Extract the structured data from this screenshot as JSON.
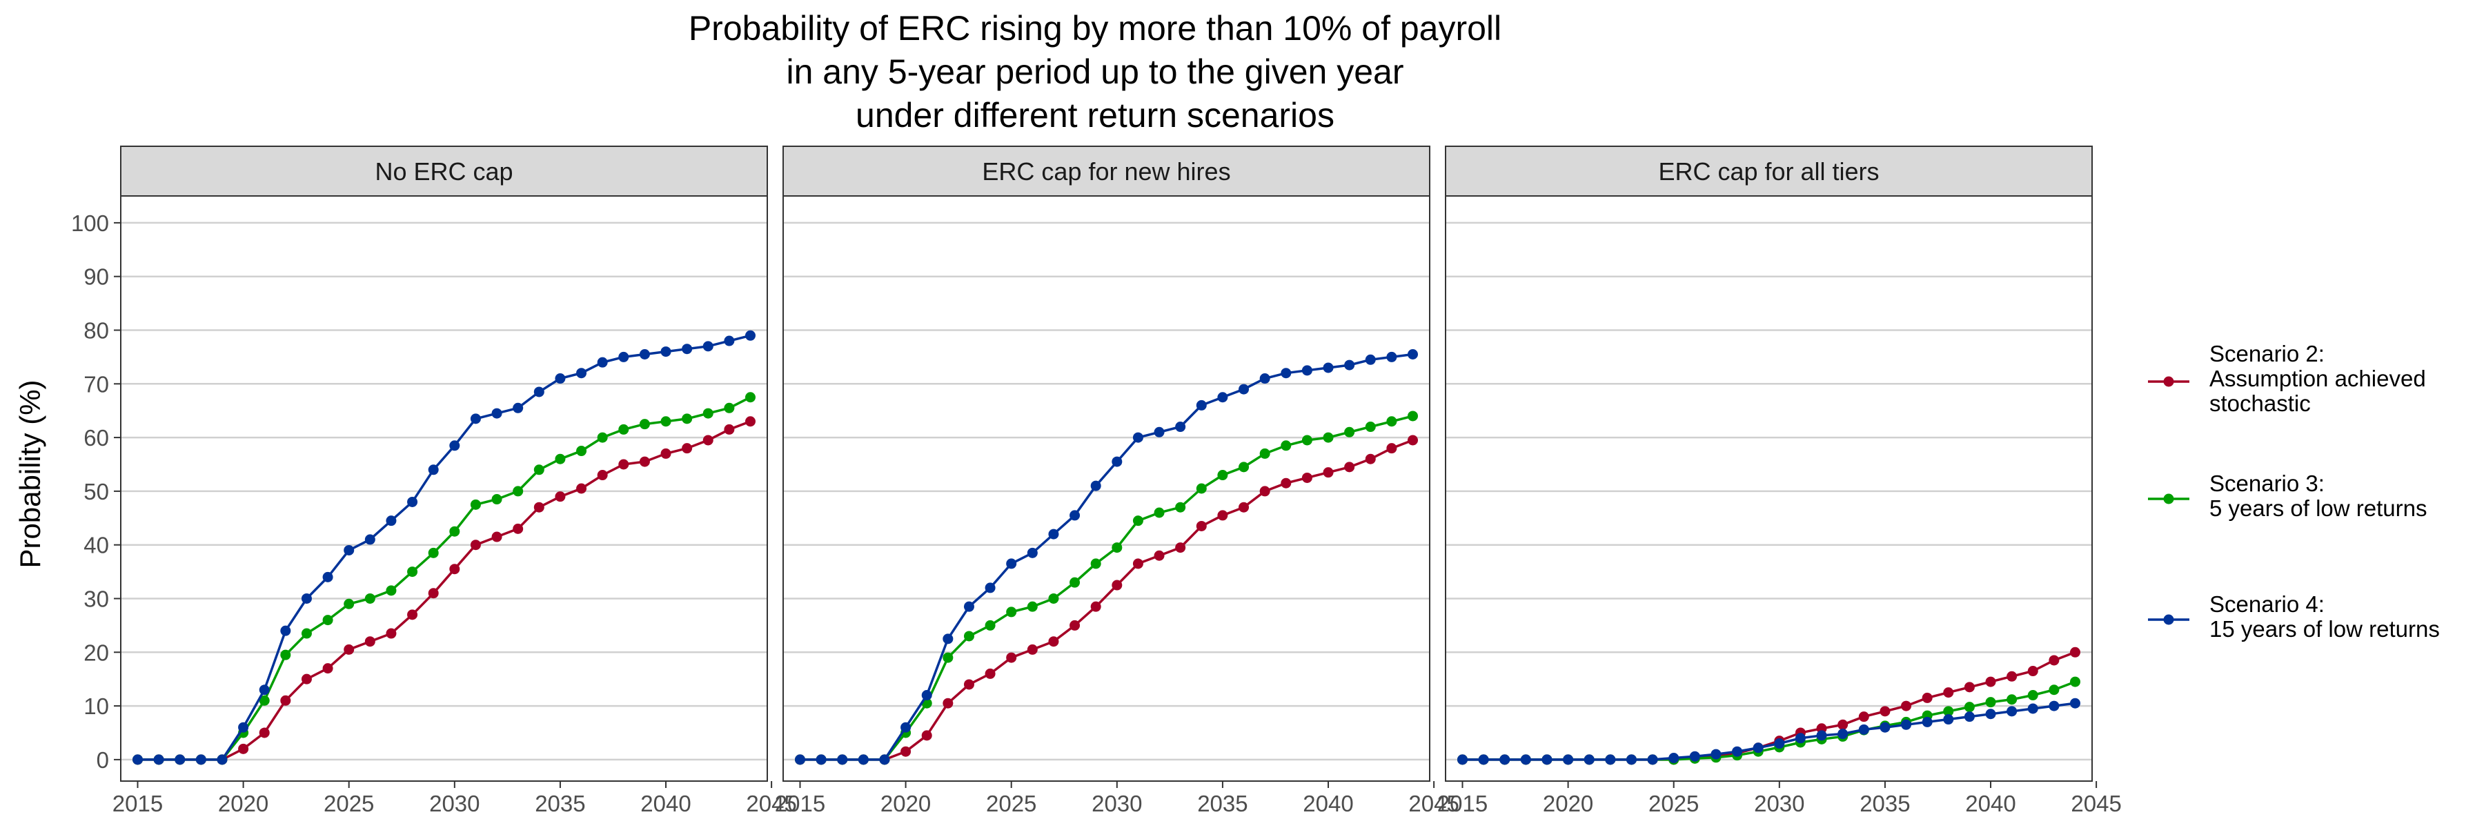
{
  "chart_data": {
    "type": "line",
    "title": [
      "Probability of ERC rising by more than 10% of payroll",
      "in any 5-year period up to the given year",
      "under different return scenarios"
    ],
    "ylabel": "Probability (%)",
    "xlabel": "",
    "xlim": [
      2014.2,
      2044.8
    ],
    "ylim": [
      -4,
      105
    ],
    "x_ticks": [
      "2015",
      "2020",
      "2025",
      "2030",
      "2035",
      "2040",
      "2045"
    ],
    "y_ticks": [
      "0",
      "10",
      "20",
      "30",
      "40",
      "50",
      "60",
      "70",
      "80",
      "90",
      "100"
    ],
    "grid": "horizontal major",
    "legend_position": "right",
    "x": [
      2015,
      2016,
      2017,
      2018,
      2019,
      2020,
      2021,
      2022,
      2023,
      2024,
      2025,
      2026,
      2027,
      2028,
      2029,
      2030,
      2031,
      2032,
      2033,
      2034,
      2035,
      2036,
      2037,
      2038,
      2039,
      2040,
      2041,
      2042,
      2043,
      2044
    ],
    "series_styles": [
      {
        "label_lines": [
          "Scenario 2:",
          "Assumption achieved",
          "stochastic"
        ],
        "color": "#A50026"
      },
      {
        "label_lines": [
          "Scenario 3:",
          "5 years of low returns"
        ],
        "color": "#009E00"
      },
      {
        "label_lines": [
          "Scenario 4:",
          "15 years of low returns"
        ],
        "color": "#003399"
      }
    ],
    "panels": [
      {
        "label": "No ERC cap",
        "series": [
          {
            "values": [
              0,
              0,
              0,
              0,
              0,
              2,
              5,
              11,
              15,
              17,
              20.5,
              22,
              23.5,
              27,
              31,
              35.5,
              40,
              41.5,
              43,
              47,
              49,
              50.5,
              53,
              55,
              55.5,
              57,
              58,
              59.5,
              61.5,
              63
            ]
          },
          {
            "values": [
              0,
              0,
              0,
              0,
              0,
              5,
              11,
              19.5,
              23.5,
              26,
              29,
              30,
              31.5,
              35,
              38.5,
              42.5,
              47.5,
              48.5,
              50,
              54,
              56,
              57.5,
              60,
              61.5,
              62.5,
              63,
              63.5,
              64.5,
              65.5,
              67.5
            ]
          },
          {
            "values": [
              0,
              0,
              0,
              0,
              0,
              6,
              13,
              24,
              30,
              34,
              39,
              41,
              44.5,
              48,
              54,
              58.5,
              63.5,
              64.5,
              65.5,
              68.5,
              71,
              72,
              74,
              75,
              75.5,
              76,
              76.5,
              77,
              78,
              79
            ]
          }
        ]
      },
      {
        "label": "ERC cap for new hires",
        "series": [
          {
            "values": [
              0,
              0,
              0,
              0,
              0,
              1.5,
              4.5,
              10.5,
              14,
              16,
              19,
              20.5,
              22,
              25,
              28.5,
              32.5,
              36.5,
              38,
              39.5,
              43.5,
              45.5,
              47,
              50,
              51.5,
              52.5,
              53.5,
              54.5,
              56,
              58,
              59.5
            ]
          },
          {
            "values": [
              0,
              0,
              0,
              0,
              0,
              5,
              10.5,
              19,
              23,
              25,
              27.5,
              28.5,
              30,
              33,
              36.5,
              39.5,
              44.5,
              46,
              47,
              50.5,
              53,
              54.5,
              57,
              58.5,
              59.5,
              60,
              61,
              62,
              63,
              64
            ]
          },
          {
            "values": [
              0,
              0,
              0,
              0,
              0,
              6,
              12,
              22.5,
              28.5,
              32,
              36.5,
              38.5,
              42,
              45.5,
              51,
              55.5,
              60,
              61,
              62,
              66,
              67.5,
              69,
              71,
              72,
              72.5,
              73,
              73.5,
              74.5,
              75,
              75.5
            ]
          }
        ]
      },
      {
        "label": "ERC cap for all tiers",
        "series": [
          {
            "values": [
              0,
              0,
              0,
              0,
              0,
              0,
              0,
              0,
              0,
              0,
              0,
              0.3,
              0.8,
              1.2,
              2.2,
              3.5,
              5,
              5.8,
              6.5,
              8,
              9,
              10,
              11.5,
              12.5,
              13.5,
              14.5,
              15.5,
              16.5,
              18.5,
              20
            ]
          },
          {
            "values": [
              0,
              0,
              0,
              0,
              0,
              0,
              0,
              0,
              0,
              0,
              0,
              0.2,
              0.4,
              0.8,
              1.5,
              2.3,
              3.2,
              3.8,
              4.3,
              5.5,
              6.3,
              7,
              8.2,
              9,
              9.8,
              10.7,
              11.2,
              12,
              13,
              14.5
            ]
          },
          {
            "values": [
              0,
              0,
              0,
              0,
              0,
              0,
              0,
              0,
              0,
              0,
              0.3,
              0.6,
              1,
              1.5,
              2.2,
              3,
              4,
              4.5,
              4.8,
              5.6,
              6,
              6.5,
              7,
              7.5,
              8,
              8.5,
              9,
              9.5,
              10,
              10.5
            ]
          }
        ]
      }
    ]
  }
}
